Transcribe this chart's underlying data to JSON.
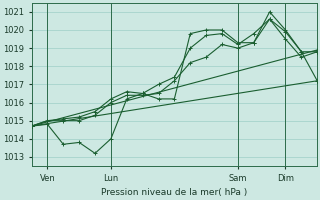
{
  "xlabel": "Pression niveau de la mer( hPa )",
  "ylim": [
    1012.5,
    1021.5
  ],
  "xlim": [
    0,
    108
  ],
  "yticks": [
    1013,
    1014,
    1015,
    1016,
    1017,
    1018,
    1019,
    1020,
    1021
  ],
  "xtick_positions": [
    6,
    30,
    78,
    96
  ],
  "xtick_labels": [
    "Ven",
    "Lun",
    "Sam",
    "Dim"
  ],
  "vlines": [
    6,
    30,
    78,
    96
  ],
  "bg_color": "#cde8e2",
  "grid_color": "#9ecfc8",
  "line_color": "#1a5e30",
  "lines": [
    {
      "x": [
        0,
        6,
        12,
        18,
        24,
        30,
        36,
        42,
        48,
        54,
        60,
        66,
        72,
        78,
        84,
        90,
        96,
        102,
        108
      ],
      "y": [
        1014.7,
        1014.8,
        1013.7,
        1013.8,
        1013.2,
        1014.0,
        1016.2,
        1016.5,
        1016.2,
        1016.2,
        1019.8,
        1020.0,
        1020.0,
        1019.3,
        1019.3,
        1021.0,
        1020.0,
        1018.8,
        1017.2
      ],
      "marker": "+"
    },
    {
      "x": [
        0,
        6,
        12,
        18,
        24,
        30,
        36,
        42,
        48,
        54,
        60,
        66,
        72,
        78,
        84,
        90,
        96,
        102,
        108
      ],
      "y": [
        1014.7,
        1015.0,
        1015.1,
        1015.2,
        1015.5,
        1016.2,
        1016.6,
        1016.5,
        1017.0,
        1017.4,
        1019.0,
        1019.7,
        1019.8,
        1019.2,
        1019.8,
        1020.6,
        1019.9,
        1018.8,
        1018.8
      ],
      "marker": "+"
    },
    {
      "x": [
        0,
        6,
        12,
        18,
        24,
        30,
        36,
        42,
        48,
        54,
        60,
        66,
        72,
        78,
        84,
        90,
        96,
        102,
        108
      ],
      "y": [
        1014.7,
        1015.0,
        1015.0,
        1015.0,
        1015.3,
        1016.0,
        1016.4,
        1016.4,
        1016.5,
        1017.2,
        1018.2,
        1018.5,
        1019.2,
        1019.0,
        1019.3,
        1020.6,
        1019.5,
        1018.5,
        1018.8
      ],
      "marker": "+"
    },
    {
      "x": [
        0,
        108
      ],
      "y": [
        1014.7,
        1018.9
      ],
      "marker": "+"
    },
    {
      "x": [
        0,
        108
      ],
      "y": [
        1014.7,
        1017.2
      ],
      "marker": "+"
    }
  ]
}
